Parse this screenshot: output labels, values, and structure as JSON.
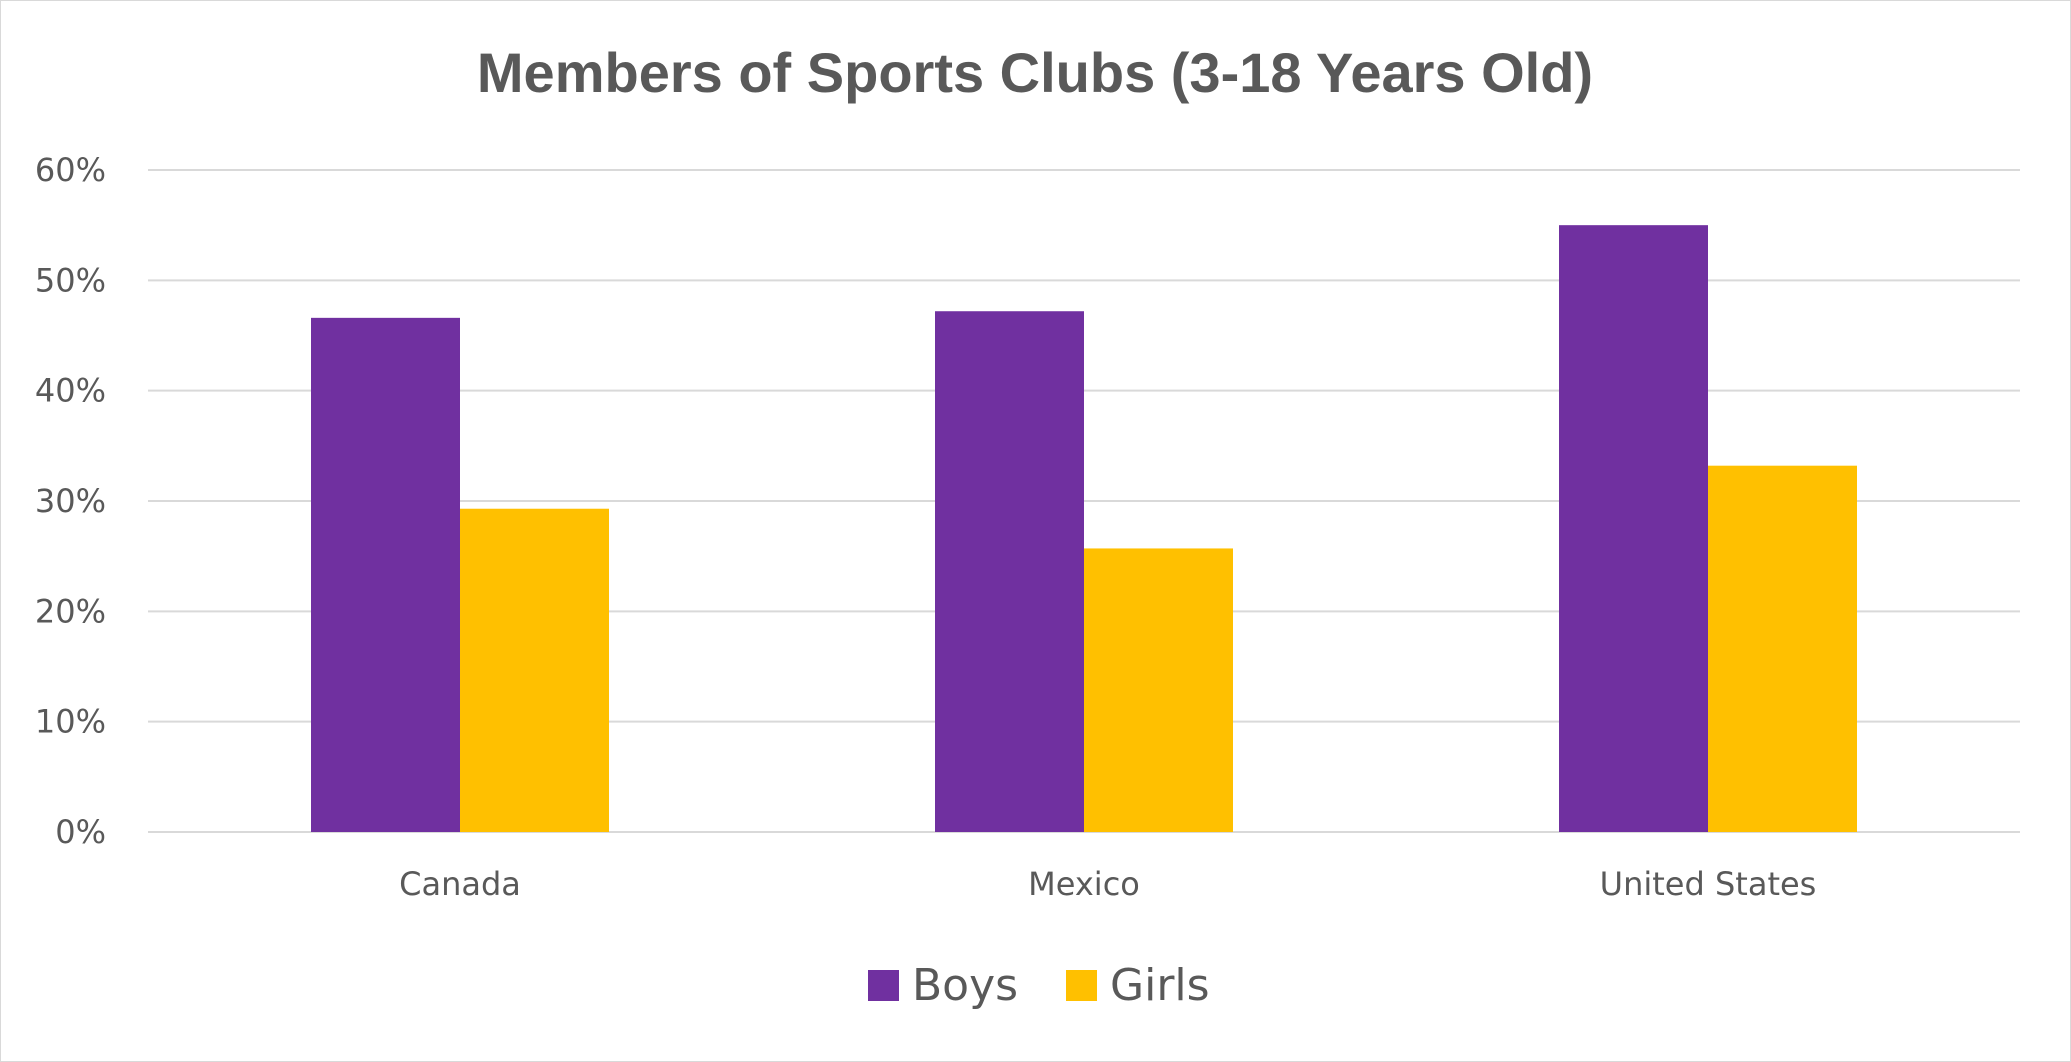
{
  "chart_data": {
    "type": "bar",
    "title": "Members of Sports Clubs (3-18 Years Old)",
    "xlabel": "",
    "ylabel": "",
    "categories": [
      "Canada",
      "Mexico",
      "United States"
    ],
    "series": [
      {
        "name": "Boys",
        "values": [
          0.466,
          0.472,
          0.55
        ],
        "color": "#7030a0"
      },
      {
        "name": "Girls",
        "values": [
          0.293,
          0.257,
          0.332
        ],
        "color": "#ffc000"
      }
    ],
    "ylim": [
      0,
      0.6
    ],
    "yticks": [
      {
        "value": 0,
        "label": "0%"
      },
      {
        "value": 0.1,
        "label": "10%"
      },
      {
        "value": 0.2,
        "label": "20%"
      },
      {
        "value": 0.3,
        "label": "30%"
      },
      {
        "value": 0.4,
        "label": "40%"
      },
      {
        "value": 0.5,
        "label": "50%"
      },
      {
        "value": 0.6,
        "label": "60%"
      }
    ],
    "grid": true,
    "legend_position": "bottom"
  }
}
